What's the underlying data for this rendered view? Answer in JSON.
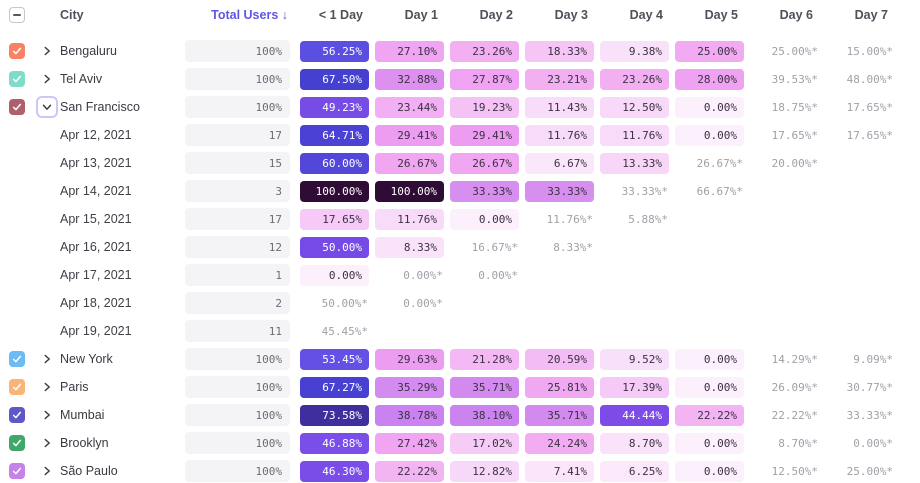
{
  "header": {
    "select_all_state": "indeterminate",
    "columns": {
      "city": "City",
      "total": "Total Users ↓",
      "days": [
        "< 1 Day",
        "Day 1",
        "Day 2",
        "Day 3",
        "Day 4",
        "Day 5",
        "Day 6",
        "Day 7"
      ]
    },
    "sorted_by": "Total Users",
    "sort_direction": "descending",
    "sort_color": "#6157e2"
  },
  "colors": {
    "total_pill_bg": "#f4f4f6",
    "muted_text": "#9fa1a8",
    "dark_cell_text": "#3c3144",
    "light_cell_text": "#ffffff",
    "checkbox_border": "#c6c6cf"
  },
  "rows": [
    {
      "type": "city",
      "label": "Bengaluru",
      "checkbox_color": "#fa8264",
      "expanded": false,
      "total": "100%",
      "cells": [
        {
          "t": "56.25%",
          "bg": "#5a4fe0",
          "fg": "#ffffff"
        },
        {
          "t": "27.10%",
          "bg": "#f0a5f2",
          "fg": "#3c3144"
        },
        {
          "t": "23.26%",
          "bg": "#f2b0f3",
          "fg": "#3c3144"
        },
        {
          "t": "18.33%",
          "bg": "#f5c6f5",
          "fg": "#3c3144"
        },
        {
          "t": "9.38%",
          "bg": "#f9e1fa",
          "fg": "#3c3144"
        },
        {
          "t": "25.00%",
          "bg": "#f2aaf2",
          "fg": "#3c3144"
        },
        {
          "t": "25.00%*",
          "muted": true
        },
        {
          "t": "15.00%*",
          "muted": true
        }
      ]
    },
    {
      "type": "city",
      "label": "Tel Aviv",
      "checkbox_color": "#7edcc8",
      "expanded": false,
      "total": "100%",
      "cells": [
        {
          "t": "67.50%",
          "bg": "#4640d1",
          "fg": "#ffffff"
        },
        {
          "t": "32.88%",
          "bg": "#dd90ef",
          "fg": "#3c3144"
        },
        {
          "t": "27.87%",
          "bg": "#f0a3f2",
          "fg": "#3c3144"
        },
        {
          "t": "23.21%",
          "bg": "#f2b0f3",
          "fg": "#3c3144"
        },
        {
          "t": "23.26%",
          "bg": "#f2b0f3",
          "fg": "#3c3144"
        },
        {
          "t": "28.00%",
          "bg": "#f0a2f2",
          "fg": "#3c3144"
        },
        {
          "t": "39.53%*",
          "muted": true
        },
        {
          "t": "48.00%*",
          "muted": true
        }
      ]
    },
    {
      "type": "city",
      "label": "San Francisco",
      "checkbox_color": "#b05f6d",
      "expanded": true,
      "total": "100%",
      "cells": [
        {
          "t": "49.23%",
          "bg": "#774be6",
          "fg": "#ffffff"
        },
        {
          "t": "23.44%",
          "bg": "#f2aff3",
          "fg": "#3c3144"
        },
        {
          "t": "19.23%",
          "bg": "#f5c2f5",
          "fg": "#3c3144"
        },
        {
          "t": "11.43%",
          "bg": "#f9dcf9",
          "fg": "#3c3144"
        },
        {
          "t": "12.50%",
          "bg": "#f8d9f9",
          "fg": "#3c3144"
        },
        {
          "t": "0.00%",
          "bg": "#fcf0fc",
          "fg": "#3c3144"
        },
        {
          "t": "18.75%*",
          "muted": true
        },
        {
          "t": "17.65%*",
          "muted": true
        }
      ]
    },
    {
      "type": "date",
      "label": "Apr 12, 2021",
      "total": "17",
      "cells": [
        {
          "t": "64.71%",
          "bg": "#4b42d5",
          "fg": "#ffffff"
        },
        {
          "t": "29.41%",
          "bg": "#ec9df1",
          "fg": "#3c3144"
        },
        {
          "t": "29.41%",
          "bg": "#ec9df1",
          "fg": "#3c3144"
        },
        {
          "t": "11.76%",
          "bg": "#f8dbf9",
          "fg": "#3c3144"
        },
        {
          "t": "11.76%",
          "bg": "#f8dbf9",
          "fg": "#3c3144"
        },
        {
          "t": "0.00%",
          "bg": "#fcf0fc",
          "fg": "#3c3144"
        },
        {
          "t": "17.65%*",
          "muted": true
        },
        {
          "t": "17.65%*",
          "muted": true
        }
      ]
    },
    {
      "type": "date",
      "label": "Apr 13, 2021",
      "total": "15",
      "cells": [
        {
          "t": "60.00%",
          "bg": "#5347da",
          "fg": "#ffffff"
        },
        {
          "t": "26.67%",
          "bg": "#f1a6f2",
          "fg": "#3c3144"
        },
        {
          "t": "26.67%",
          "bg": "#f1a6f2",
          "fg": "#3c3144"
        },
        {
          "t": "6.67%",
          "bg": "#fbe7fb",
          "fg": "#3c3144"
        },
        {
          "t": "13.33%",
          "bg": "#f8d6f8",
          "fg": "#3c3144"
        },
        {
          "t": "26.67%*",
          "muted": true
        },
        {
          "t": "20.00%*",
          "muted": true
        },
        null
      ]
    },
    {
      "type": "date",
      "label": "Apr 14, 2021",
      "total": "3",
      "cells": [
        {
          "t": "100.00%",
          "bg": "#2f0c36",
          "fg": "#ffffff"
        },
        {
          "t": "100.00%",
          "bg": "#2f0c36",
          "fg": "#ffffff"
        },
        {
          "t": "33.33%",
          "bg": "#d78fef",
          "fg": "#3c3144"
        },
        {
          "t": "33.33%",
          "bg": "#d78fef",
          "fg": "#3c3144"
        },
        {
          "t": "33.33%*",
          "muted": true
        },
        {
          "t": "66.67%*",
          "muted": true
        },
        null,
        null
      ]
    },
    {
      "type": "date",
      "label": "Apr 15, 2021",
      "total": "17",
      "cells": [
        {
          "t": "17.65%",
          "bg": "#f6c9f6",
          "fg": "#3c3144"
        },
        {
          "t": "11.76%",
          "bg": "#f8dbf9",
          "fg": "#3c3144"
        },
        {
          "t": "0.00%",
          "bg": "#fcf0fc",
          "fg": "#3c3144"
        },
        {
          "t": "11.76%*",
          "muted": true
        },
        {
          "t": "5.88%*",
          "muted": true
        },
        null,
        null,
        null
      ]
    },
    {
      "type": "date",
      "label": "Apr 16, 2021",
      "total": "12",
      "cells": [
        {
          "t": "50.00%",
          "bg": "#764ae6",
          "fg": "#ffffff"
        },
        {
          "t": "8.33%",
          "bg": "#fae3fa",
          "fg": "#3c3144"
        },
        {
          "t": "16.67%*",
          "muted": true
        },
        {
          "t": "8.33%*",
          "muted": true
        },
        null,
        null,
        null,
        null
      ]
    },
    {
      "type": "date",
      "label": "Apr 17, 2021",
      "total": "1",
      "cells": [
        {
          "t": "0.00%",
          "bg": "#fcf0fc",
          "fg": "#3c3144"
        },
        {
          "t": "0.00%*",
          "muted": true
        },
        {
          "t": "0.00%*",
          "muted": true
        },
        null,
        null,
        null,
        null,
        null
      ]
    },
    {
      "type": "date",
      "label": "Apr 18, 2021",
      "total": "2",
      "cells": [
        {
          "t": "50.00%*",
          "muted": true
        },
        {
          "t": "0.00%*",
          "muted": true
        },
        null,
        null,
        null,
        null,
        null,
        null
      ]
    },
    {
      "type": "date",
      "label": "Apr 19, 2021",
      "total": "11",
      "cells": [
        {
          "t": "45.45%*",
          "muted": true
        },
        null,
        null,
        null,
        null,
        null,
        null,
        null
      ]
    },
    {
      "type": "city",
      "label": "New York",
      "checkbox_color": "#6cbbf2",
      "expanded": false,
      "total": "100%",
      "cells": [
        {
          "t": "53.45%",
          "bg": "#6450e4",
          "fg": "#ffffff"
        },
        {
          "t": "29.63%",
          "bg": "#ec9cf1",
          "fg": "#3c3144"
        },
        {
          "t": "21.28%",
          "bg": "#f4b9f4",
          "fg": "#3c3144"
        },
        {
          "t": "20.59%",
          "bg": "#f4bcf4",
          "fg": "#3c3144"
        },
        {
          "t": "9.52%",
          "bg": "#f9e0fa",
          "fg": "#3c3144"
        },
        {
          "t": "0.00%",
          "bg": "#fcf0fc",
          "fg": "#3c3144"
        },
        {
          "t": "14.29%*",
          "muted": true
        },
        {
          "t": "9.09%*",
          "muted": true
        }
      ]
    },
    {
      "type": "city",
      "label": "Paris",
      "checkbox_color": "#f9b478",
      "expanded": false,
      "total": "100%",
      "cells": [
        {
          "t": "67.27%",
          "bg": "#4740d2",
          "fg": "#ffffff"
        },
        {
          "t": "35.29%",
          "bg": "#d48bef",
          "fg": "#3c3144"
        },
        {
          "t": "35.71%",
          "bg": "#d38aef",
          "fg": "#3c3144"
        },
        {
          "t": "25.81%",
          "bg": "#f1a8f2",
          "fg": "#3c3144"
        },
        {
          "t": "17.39%",
          "bg": "#f6caf6",
          "fg": "#3c3144"
        },
        {
          "t": "0.00%",
          "bg": "#fcf0fc",
          "fg": "#3c3144"
        },
        {
          "t": "26.09%*",
          "muted": true
        },
        {
          "t": "30.77%*",
          "muted": true
        }
      ]
    },
    {
      "type": "city",
      "label": "Mumbai",
      "checkbox_color": "#5f58c8",
      "expanded": false,
      "total": "100%",
      "cells": [
        {
          "t": "73.58%",
          "bg": "#3f2f9e",
          "fg": "#ffffff"
        },
        {
          "t": "38.78%",
          "bg": "#c982ef",
          "fg": "#3c3144"
        },
        {
          "t": "38.10%",
          "bg": "#cb84ef",
          "fg": "#3c3144"
        },
        {
          "t": "35.71%",
          "bg": "#d38aef",
          "fg": "#3c3144"
        },
        {
          "t": "44.44%",
          "bg": "#7c4be8",
          "fg": "#ffffff"
        },
        {
          "t": "22.22%",
          "bg": "#f3b4f3",
          "fg": "#3c3144"
        },
        {
          "t": "22.22%*",
          "muted": true
        },
        {
          "t": "33.33%*",
          "muted": true
        }
      ]
    },
    {
      "type": "city",
      "label": "Brooklyn",
      "checkbox_color": "#3fa868",
      "expanded": false,
      "total": "100%",
      "cells": [
        {
          "t": "46.88%",
          "bg": "#7a4ee8",
          "fg": "#ffffff"
        },
        {
          "t": "27.42%",
          "bg": "#f0a4f2",
          "fg": "#3c3144"
        },
        {
          "t": "17.02%",
          "bg": "#f6cbf6",
          "fg": "#3c3144"
        },
        {
          "t": "24.24%",
          "bg": "#f2acf2",
          "fg": "#3c3144"
        },
        {
          "t": "8.70%",
          "bg": "#fae2fa",
          "fg": "#3c3144"
        },
        {
          "t": "0.00%",
          "bg": "#fcf0fc",
          "fg": "#3c3144"
        },
        {
          "t": "8.70%*",
          "muted": true
        },
        {
          "t": "0.00%*",
          "muted": true
        }
      ]
    },
    {
      "type": "city",
      "label": "São Paulo",
      "checkbox_color": "#c583e8",
      "expanded": false,
      "total": "100%",
      "cells": [
        {
          "t": "46.30%",
          "bg": "#7a4de8",
          "fg": "#ffffff"
        },
        {
          "t": "22.22%",
          "bg": "#f3b4f3",
          "fg": "#3c3144"
        },
        {
          "t": "12.82%",
          "bg": "#f8d8f9",
          "fg": "#3c3144"
        },
        {
          "t": "7.41%",
          "bg": "#fae5fb",
          "fg": "#3c3144"
        },
        {
          "t": "6.25%",
          "bg": "#fbe8fb",
          "fg": "#3c3144"
        },
        {
          "t": "0.00%",
          "bg": "#fcf0fc",
          "fg": "#3c3144"
        },
        {
          "t": "12.50%*",
          "muted": true
        },
        {
          "t": "25.00%*",
          "muted": true
        }
      ]
    }
  ]
}
